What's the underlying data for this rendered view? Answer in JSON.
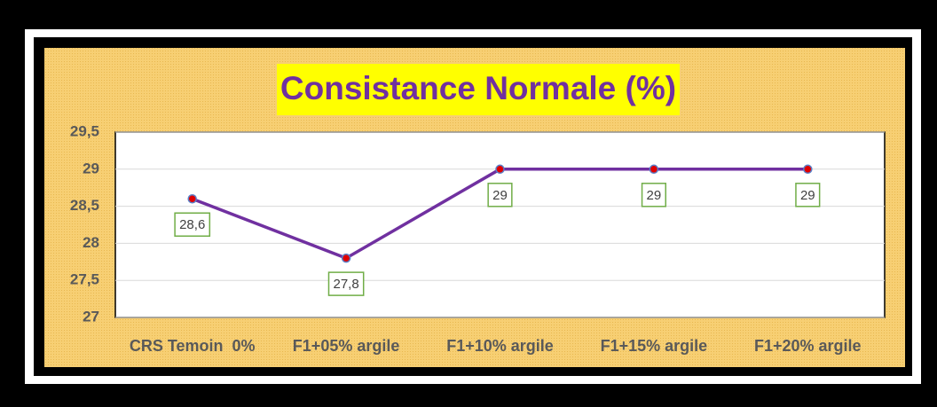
{
  "chart_data": {
    "type": "line",
    "title": "Consistance Normale (%)",
    "categories": [
      "CRS Temoin  0%",
      "F1+05% argile",
      "F1+10% argile",
      "F1+15% argile",
      "F1+20% argile"
    ],
    "series": [
      {
        "name": "Consistance Normale (%)",
        "color": "#7030a0",
        "values": [
          28.6,
          27.8,
          29,
          29,
          29
        ],
        "value_labels": [
          "28,6",
          "27,8",
          "29",
          "29",
          "29"
        ]
      }
    ],
    "ylim": [
      27,
      29.5
    ],
    "yticks": [
      27,
      {
        "value": 27.5,
        "label": "27,5"
      },
      28,
      {
        "value": 28.5,
        "label": "28,5"
      },
      29,
      {
        "value": 29.5,
        "label": "29,5"
      }
    ],
    "grid": true
  }
}
